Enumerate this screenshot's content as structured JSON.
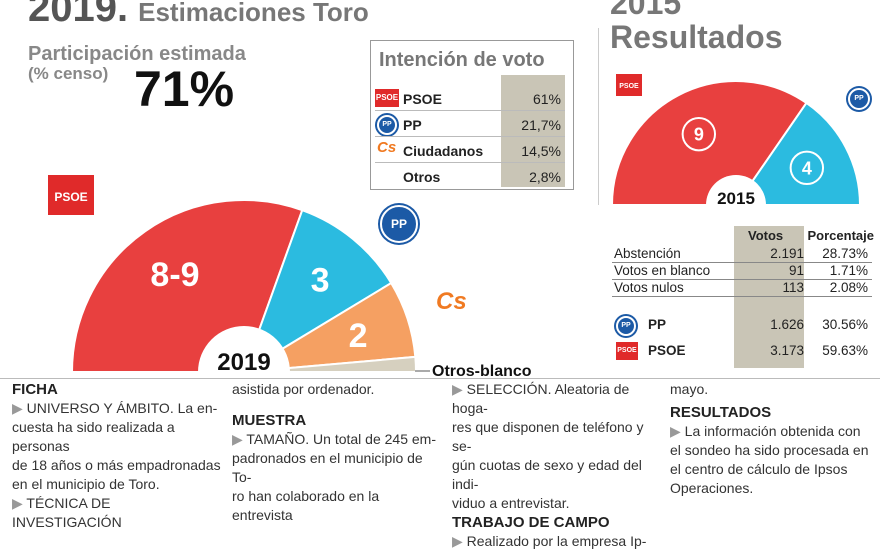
{
  "header": {
    "year": "2019.",
    "subtitle": "Estimaciones Toro",
    "right_year": "2015",
    "right_title": "Resultados"
  },
  "participation": {
    "label": "Participación estimada",
    "sublabel": "(% censo)",
    "value": "71%"
  },
  "intention": {
    "title": "Intención de voto",
    "rows": [
      {
        "party": "PSOE",
        "logo": "PSOE",
        "value": "61%"
      },
      {
        "party": "PP",
        "logo": "PP",
        "value": "21,7%"
      },
      {
        "party": "Ciudadanos",
        "logo": "Cs",
        "value": "14,5%"
      },
      {
        "party": "Otros",
        "logo": "",
        "value": "2,8%"
      }
    ]
  },
  "chart2019": {
    "center_label": "2019",
    "logos": {
      "psoe": "PSOE",
      "pp": "PP",
      "cs": "Cs"
    },
    "otros_label": "Otros-blanco",
    "colors": {
      "psoe": "#e8403f",
      "pp": "#2bbbe0",
      "cs": "#f5a062",
      "otros": "#d6d0bf"
    }
  },
  "chart_data": [
    {
      "type": "pie",
      "title": "2019",
      "categories": [
        "PSOE",
        "PP",
        "Ciudadanos",
        "Otros-blanco"
      ],
      "values": [
        61,
        21.7,
        14.5,
        2.8
      ],
      "labels": [
        "8-9",
        "3",
        "2",
        ""
      ]
    },
    {
      "type": "pie",
      "title": "2015",
      "categories": [
        "PSOE",
        "PP"
      ],
      "values": [
        9,
        4
      ],
      "labels": [
        "9",
        "4"
      ]
    }
  ],
  "chart2015": {
    "center_label": "2015",
    "logos": {
      "psoe": "PSOE",
      "pp": "PP"
    }
  },
  "results": {
    "headers": {
      "votos": "Votos",
      "porcentaje": "Porcentaje"
    },
    "rows": [
      {
        "label": "Abstención",
        "votos": "2.191",
        "pct": "28.73%"
      },
      {
        "label": "Votos en blanco",
        "votos": "91",
        "pct": "1.71%"
      },
      {
        "label": "Votos nulos",
        "votos": "113",
        "pct": "2.08%"
      }
    ],
    "parties": [
      {
        "label": "PP",
        "logo": "PP",
        "votos": "1.626",
        "pct": "30.56%"
      },
      {
        "label": "PSOE",
        "logo": "PSOE",
        "votos": "3.173",
        "pct": "59.63%"
      }
    ]
  },
  "ficha": {
    "col1": {
      "title": "FICHA",
      "item1_head": "UNIVERSO Y ÁMBITO",
      "item1_text": ". La en-",
      "item1_l2": "cuesta ha sido realizada a personas",
      "item1_l3": "de 18 años o más empadronadas",
      "item1_l4": "en el municipio de Toro.",
      "item2_head": "TÉCNICA DE INVESTIGACIÓN"
    },
    "col2": {
      "l1": "asistida por ordenador.",
      "title": "MUESTRA",
      "item_head": "TAMAÑO",
      "item_text": ". Un total de 245 em-",
      "l2": "padronados en el municipio de To-",
      "l3": "ro han colaborado en la entrevista"
    },
    "col3": {
      "item_head": "SELECCIÓN",
      "item_text": ". Aleatoria de hoga-",
      "l2": "res que disponen de teléfono y se-",
      "l3": "gún cuotas de sexo y edad del indi-",
      "l4": "viduo a entrevistar.",
      "title": "TRABAJO DE CAMPO",
      "l5": "Realizado por la empresa Ip-"
    },
    "col4": {
      "l1": "mayo.",
      "title": "RESULTADOS",
      "l2": "La información obtenida con",
      "l3": "el sondeo ha sido procesada en",
      "l4": "el centro de cálculo de Ipsos",
      "l5": "Operaciones."
    }
  }
}
